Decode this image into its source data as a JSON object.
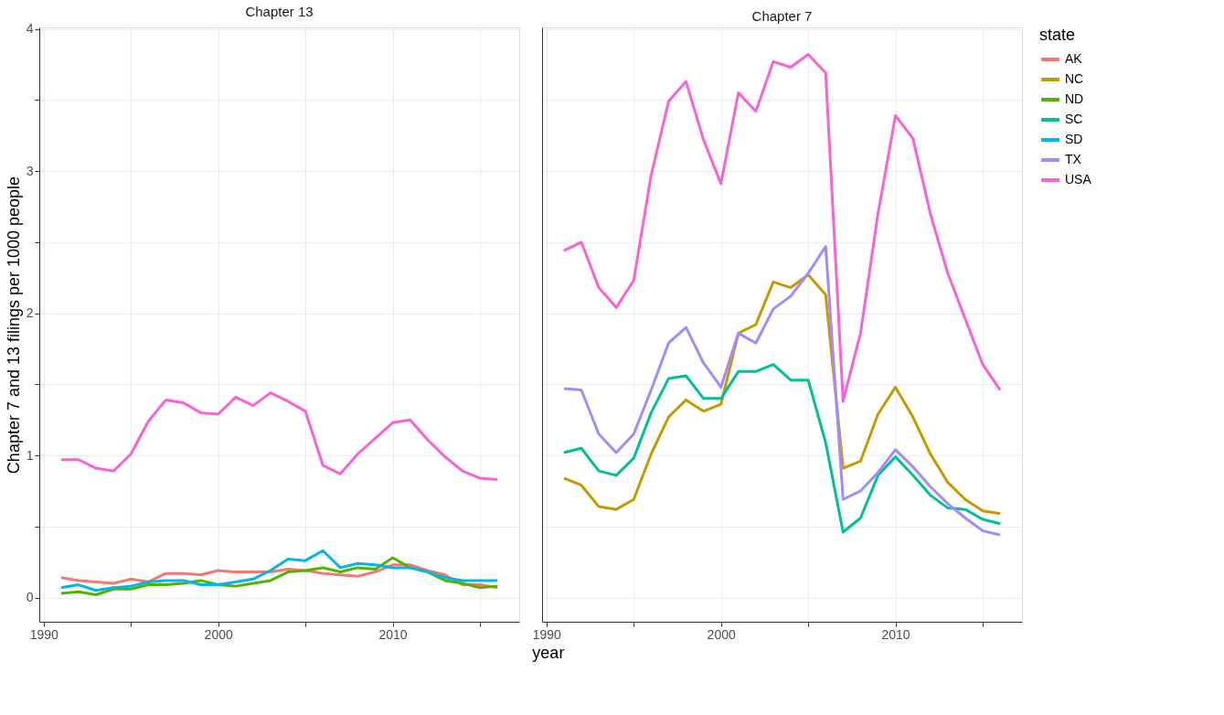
{
  "chart_data": [
    {
      "type": "line",
      "title": "Chapter 13",
      "ylabel": "Chapter 7 and 13 filings per 1000 people",
      "xlabel": "year",
      "legend": "right",
      "grid": true,
      "x": [
        1991,
        1992,
        1993,
        1994,
        1995,
        1996,
        1997,
        1998,
        1999,
        2000,
        2001,
        2002,
        2003,
        2004,
        2005,
        2006,
        2007,
        2008,
        2009,
        2010,
        2011,
        2012,
        2013,
        2014,
        2015,
        2016
      ],
      "xlim": [
        1989.75,
        2017.25
      ],
      "xticks": [
        1990,
        {
          "value": 1995,
          "label": null
        },
        2000,
        {
          "value": 2005,
          "label": null
        },
        2010,
        {
          "value": 2015,
          "label": null
        }
      ],
      "ylim": [
        -0.17,
        4.01
      ],
      "yticks": [
        0,
        {
          "value": 0.5,
          "label": null
        },
        1,
        {
          "value": 1.5,
          "label": null
        },
        2,
        {
          "value": 2.5,
          "label": null
        },
        3,
        {
          "value": 3.5,
          "label": null
        },
        4
      ],
      "series": [
        {
          "name": "AK",
          "color": "#f8766d",
          "values": [
            0.14,
            0.12,
            0.11,
            0.1,
            0.13,
            0.11,
            0.17,
            0.17,
            0.16,
            0.19,
            0.18,
            0.18,
            0.18,
            0.2,
            0.19,
            0.17,
            0.16,
            0.15,
            0.18,
            0.23,
            0.23,
            0.19,
            0.16,
            0.09,
            0.09,
            0.07
          ]
        },
        {
          "name": "ND",
          "color": "#53b400",
          "values": [
            0.03,
            0.04,
            0.02,
            0.06,
            0.06,
            0.09,
            0.09,
            0.1,
            0.12,
            0.09,
            0.08,
            0.1,
            0.12,
            0.18,
            0.19,
            0.21,
            0.18,
            0.21,
            0.2,
            0.28,
            0.21,
            0.18,
            0.12,
            0.1,
            0.07,
            0.08
          ]
        },
        {
          "name": "SD",
          "color": "#00b6eb",
          "values": [
            0.07,
            0.09,
            0.05,
            0.07,
            0.08,
            0.11,
            0.12,
            0.12,
            0.09,
            0.09,
            0.11,
            0.13,
            0.19,
            0.27,
            0.26,
            0.33,
            0.21,
            0.24,
            0.23,
            0.21,
            0.21,
            0.18,
            0.14,
            0.12,
            0.12,
            0.12
          ]
        },
        {
          "name": "USA",
          "color": "#fb61d7",
          "values": [
            0.97,
            0.97,
            0.91,
            0.89,
            1.01,
            1.24,
            1.39,
            1.37,
            1.3,
            1.29,
            1.41,
            1.35,
            1.44,
            1.38,
            1.31,
            0.93,
            0.87,
            1.01,
            1.12,
            1.23,
            1.25,
            1.11,
            0.99,
            0.89,
            0.84,
            0.83
          ]
        }
      ]
    },
    {
      "type": "line",
      "title": "Chapter 7",
      "legend_title": "state",
      "legend": "right",
      "grid": true,
      "tick_labels": "x",
      "x": [
        1991,
        1992,
        1993,
        1994,
        1995,
        1996,
        1997,
        1998,
        1999,
        2000,
        2001,
        2002,
        2003,
        2004,
        2005,
        2006,
        2007,
        2008,
        2009,
        2010,
        2011,
        2012,
        2013,
        2014,
        2015,
        2016
      ],
      "xlim": [
        1989.75,
        2017.25
      ],
      "xticks": [
        1990,
        {
          "value": 1995,
          "label": null
        },
        2000,
        {
          "value": 2005,
          "label": null
        },
        2010,
        {
          "value": 2015,
          "label": null
        }
      ],
      "ylim": [
        -0.17,
        4.01
      ],
      "yticks": [
        0,
        {
          "value": 0.5,
          "label": null
        },
        1,
        {
          "value": 1.5,
          "label": null
        },
        2,
        {
          "value": 2.5,
          "label": null
        },
        3,
        {
          "value": 3.5,
          "label": null
        },
        4
      ],
      "series": [
        {
          "name": "NC",
          "color": "#c49a00",
          "values": [
            0.84,
            0.79,
            0.64,
            0.62,
            0.69,
            1.01,
            1.27,
            1.39,
            1.31,
            1.36,
            1.86,
            1.92,
            2.22,
            2.18,
            2.27,
            2.13,
            0.91,
            0.96,
            1.29,
            1.48,
            1.27,
            1.01,
            0.81,
            0.69,
            0.61,
            0.59
          ]
        },
        {
          "name": "SC",
          "color": "#00c094",
          "values": [
            1.02,
            1.05,
            0.89,
            0.86,
            0.98,
            1.3,
            1.54,
            1.56,
            1.4,
            1.4,
            1.59,
            1.59,
            1.64,
            1.53,
            1.53,
            1.09,
            0.46,
            0.56,
            0.86,
            0.99,
            0.86,
            0.72,
            0.63,
            0.62,
            0.55,
            0.52
          ]
        },
        {
          "name": "TX",
          "color": "#a58aff",
          "values": [
            1.47,
            1.46,
            1.15,
            1.02,
            1.15,
            1.46,
            1.79,
            1.9,
            1.65,
            1.48,
            1.86,
            1.79,
            2.03,
            2.12,
            2.28,
            2.47,
            0.69,
            0.75,
            0.88,
            1.04,
            0.92,
            0.78,
            0.66,
            0.56,
            0.47,
            0.44
          ]
        },
        {
          "name": "USA",
          "color": "#fb61d7",
          "values": [
            2.44,
            2.5,
            2.18,
            2.04,
            2.23,
            2.97,
            3.49,
            3.63,
            3.22,
            2.91,
            3.55,
            3.42,
            3.77,
            3.73,
            3.82,
            3.69,
            1.38,
            1.86,
            2.7,
            3.39,
            3.23,
            2.7,
            2.28,
            1.96,
            1.64,
            1.46
          ]
        }
      ]
    }
  ]
}
